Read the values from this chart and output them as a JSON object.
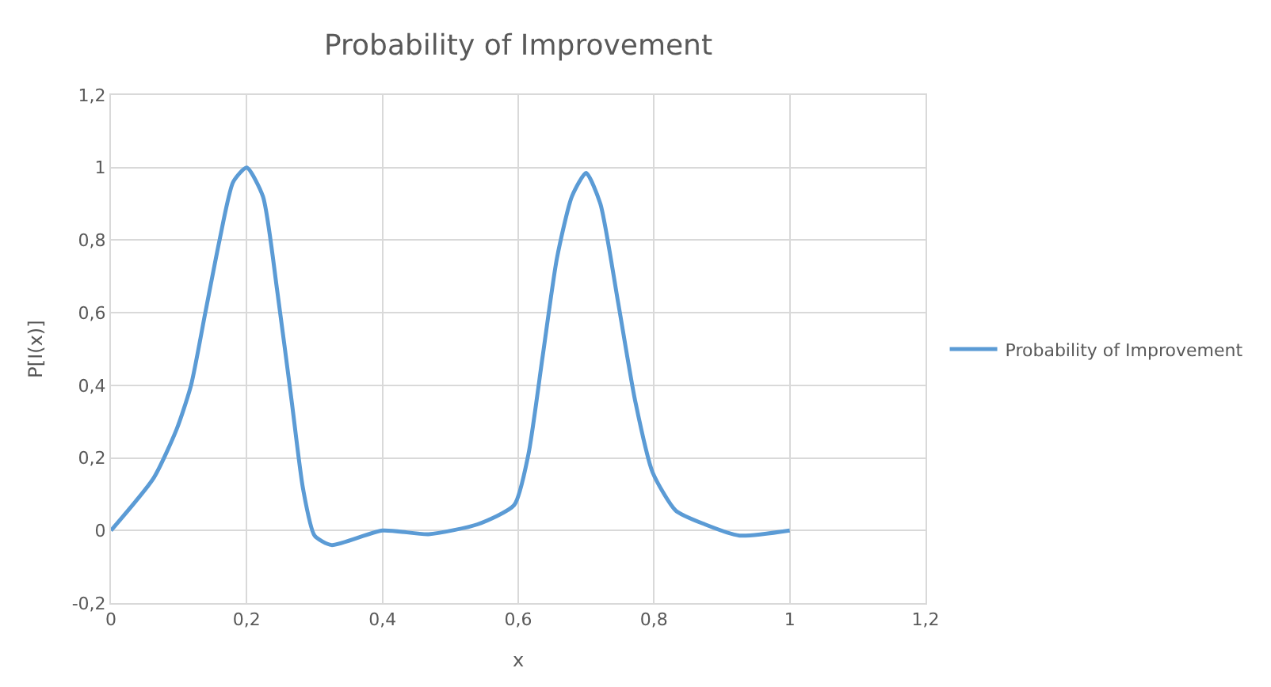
{
  "chart_data": {
    "type": "line",
    "title": "Probability of Improvement",
    "xlabel": "x",
    "ylabel": "P[I(x)]",
    "xlim": [
      0,
      1.2
    ],
    "xticks": [
      {
        "value": 0,
        "label": "0"
      },
      {
        "value": 0.2,
        "label": "0,2"
      },
      {
        "value": 0.4,
        "label": "0,4"
      },
      {
        "value": 0.6,
        "label": "0,6"
      },
      {
        "value": 0.8,
        "label": "0,8"
      },
      {
        "value": 1,
        "label": "1"
      },
      {
        "value": 1.2,
        "label": "1,2"
      }
    ],
    "ylim": [
      -0.2,
      1.2
    ],
    "yticks": [
      {
        "value": -0.2,
        "label": "-0,2"
      },
      {
        "value": 0,
        "label": "0"
      },
      {
        "value": 0.2,
        "label": "0,2"
      },
      {
        "value": 0.4,
        "label": "0,4"
      },
      {
        "value": 0.6,
        "label": "0,6"
      },
      {
        "value": 0.8,
        "label": "0,8"
      },
      {
        "value": 1,
        "label": "1"
      },
      {
        "value": 1.2,
        "label": "1,2"
      }
    ],
    "grid": true,
    "legend": "right",
    "marker": "none",
    "line_style": "solid",
    "series": [
      {
        "name": "Probability of Improvement",
        "color": "#5b9bd5",
        "x": [
          0,
          0.063,
          0.097,
          0.118,
          0.139,
          0.16,
          0.18,
          0.2,
          0.224,
          0.245,
          0.266,
          0.283,
          0.3,
          0.325,
          0.4,
          0.468,
          0.54,
          0.594,
          0.615,
          0.636,
          0.657,
          0.679,
          0.7,
          0.721,
          0.747,
          0.772,
          0.798,
          0.832,
          0.875,
          0.926,
          1.0
        ],
        "values": [
          0,
          0.145,
          0.28,
          0.4,
          0.6,
          0.8,
          0.96,
          1.0,
          0.92,
          0.66,
          0.36,
          0.115,
          -0.014,
          -0.04,
          0,
          -0.01,
          0.017,
          0.07,
          0.21,
          0.48,
          0.75,
          0.92,
          0.985,
          0.9,
          0.63,
          0.36,
          0.16,
          0.055,
          0.017,
          -0.014,
          0
        ]
      }
    ]
  }
}
